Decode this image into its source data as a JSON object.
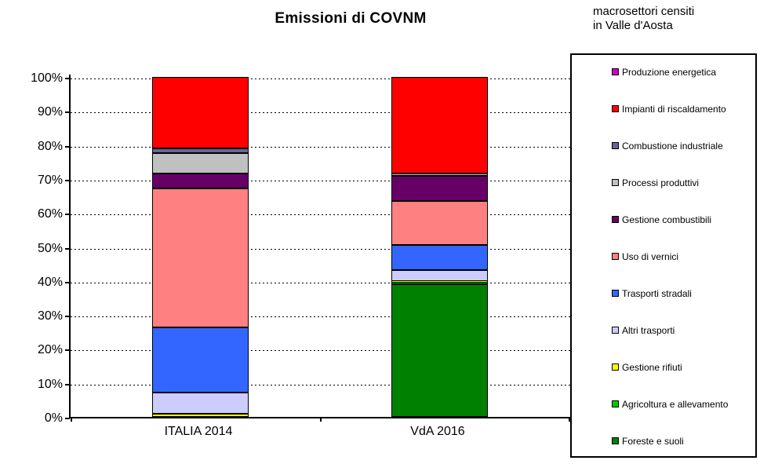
{
  "title": "Emissioni di COVNM",
  "note": {
    "line1": "macrosettori censiti",
    "line2": "in Valle d'Aosta"
  },
  "chart_data": {
    "type": "bar",
    "stacked": true,
    "unit": "percent",
    "title": "Emissioni di COVNM",
    "categories": [
      "ITALIA 2014",
      "VdA 2016"
    ],
    "y_axis": {
      "min": 0,
      "max": 100,
      "step": 10,
      "grid": "dashed",
      "tick_labels": [
        "0%",
        "10%",
        "20%",
        "30%",
        "40%",
        "50%",
        "60%",
        "70%",
        "80%",
        "90%",
        "100%"
      ]
    },
    "legend_title": "macrosettori censiti in Valle d'Aosta",
    "legend_position": "right-box",
    "legend_order": "top-to-bottom is reverse of stacking order",
    "series": [
      {
        "id": "foreste-e-suoli",
        "name": "Foreste e suoli",
        "color": "#008000",
        "values": [
          0,
          39.0
        ]
      },
      {
        "id": "agricoltura-e-allevamento",
        "name": "Agricoltura e allevamento",
        "color": "#00CC00",
        "values": [
          0,
          0.5
        ]
      },
      {
        "id": "gestione-rifiuti",
        "name": "Gestione rifiuti",
        "color": "#FFFF00",
        "values": [
          1.0,
          0.5
        ]
      },
      {
        "id": "altri-trasporti",
        "name": "Altri trasporti",
        "color": "#CCCCFF",
        "values": [
          6.2,
          3.1
        ]
      },
      {
        "id": "trasporti-stradali",
        "name": "Trasporti stradali",
        "color": "#3366FF",
        "values": [
          19.1,
          7.5
        ]
      },
      {
        "id": "uso-di-vernici",
        "name": "Uso di vernici",
        "color": "#FF8080",
        "values": [
          41.0,
          13.0
        ]
      },
      {
        "id": "gestione-combustibili",
        "name": "Gestione combustibili",
        "color": "#660066",
        "values": [
          4.4,
          7.4
        ]
      },
      {
        "id": "processi-produttivi",
        "name": "Processi produttivi",
        "color": "#C0C0C0",
        "values": [
          6.0,
          0.5
        ]
      },
      {
        "id": "combustione-industriale",
        "name": "Combustione industriale",
        "color": "#666699",
        "values": [
          1.3,
          0
        ]
      },
      {
        "id": "impianti-di-riscaldamento",
        "name": "Impianti di riscaldamento",
        "color": "#FF0000",
        "values": [
          21.0,
          28.5
        ]
      },
      {
        "id": "produzione-energetica",
        "name": "Produzione energetica",
        "color": "#CC00CC",
        "values": [
          0,
          0
        ]
      }
    ]
  }
}
